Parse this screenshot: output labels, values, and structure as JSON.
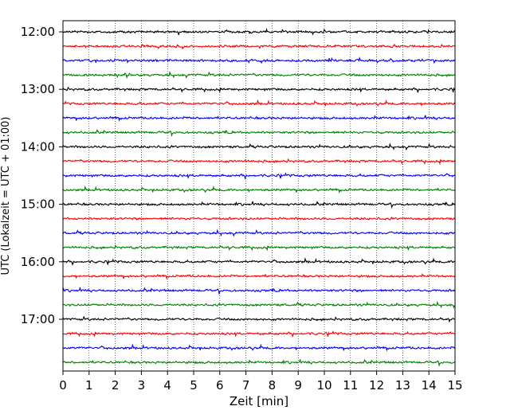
{
  "chart_data": {
    "type": "line",
    "title": "",
    "xlabel": "Zeit  [min]",
    "ylabel": "UTC (Lokalzeit = UTC + 01:00)",
    "xlim": [
      0,
      15
    ],
    "x_ticks": [
      "0",
      "1",
      "2",
      "3",
      "4",
      "5",
      "6",
      "7",
      "8",
      "9",
      "10",
      "11",
      "12",
      "13",
      "14",
      "15"
    ],
    "y_ticks": [
      "12:00",
      "13:00",
      "14:00",
      "15:00",
      "16:00",
      "17:00"
    ],
    "grid": "vertical dotted",
    "trace_colors": [
      "#000000",
      "#ff0000",
      "#0000ff",
      "#008000"
    ],
    "trace_interval_min": 15,
    "traces": [
      {
        "start": "12:00",
        "color": "#000000"
      },
      {
        "start": "12:15",
        "color": "#ff0000"
      },
      {
        "start": "12:30",
        "color": "#0000ff"
      },
      {
        "start": "12:45",
        "color": "#008000"
      },
      {
        "start": "13:00",
        "color": "#000000"
      },
      {
        "start": "13:15",
        "color": "#ff0000"
      },
      {
        "start": "13:30",
        "color": "#0000ff"
      },
      {
        "start": "13:45",
        "color": "#008000"
      },
      {
        "start": "14:00",
        "color": "#000000"
      },
      {
        "start": "14:15",
        "color": "#ff0000"
      },
      {
        "start": "14:30",
        "color": "#0000ff"
      },
      {
        "start": "14:45",
        "color": "#008000"
      },
      {
        "start": "15:00",
        "color": "#000000"
      },
      {
        "start": "15:15",
        "color": "#ff0000"
      },
      {
        "start": "15:30",
        "color": "#0000ff"
      },
      {
        "start": "15:45",
        "color": "#008000"
      },
      {
        "start": "16:00",
        "color": "#000000"
      },
      {
        "start": "16:15",
        "color": "#ff0000"
      },
      {
        "start": "16:30",
        "color": "#0000ff"
      },
      {
        "start": "16:45",
        "color": "#008000"
      },
      {
        "start": "17:00",
        "color": "#000000"
      },
      {
        "start": "17:15",
        "color": "#ff0000"
      },
      {
        "start": "17:30",
        "color": "#0000ff"
      },
      {
        "start": "17:45",
        "color": "#008000"
      }
    ]
  }
}
